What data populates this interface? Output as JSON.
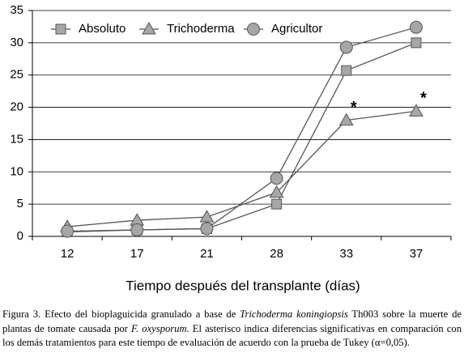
{
  "chart_data": {
    "type": "line",
    "x_label": "Tiempo después del transplante (días)",
    "categories": [
      "12",
      "17",
      "21",
      "28",
      "33",
      "37"
    ],
    "series": [
      {
        "name": "Absoluto",
        "marker": "square",
        "color": "#a6a6a6",
        "values": [
          0.7,
          1.0,
          1.2,
          5.0,
          25.7,
          30.0
        ]
      },
      {
        "name": "Trichoderma",
        "marker": "triangle",
        "color": "#a6a6a6",
        "values": [
          1.5,
          2.5,
          3.0,
          6.8,
          18.0,
          19.4
        ]
      },
      {
        "name": "Agricultor",
        "marker": "circle",
        "color": "#a6a6a6",
        "values": [
          0.8,
          1.0,
          1.2,
          9.0,
          29.3,
          32.4
        ]
      }
    ],
    "annotations": [
      "*",
      "*"
    ],
    "ylim": [
      0,
      35
    ],
    "yticks": [
      0,
      5,
      10,
      15,
      20,
      25,
      30,
      35
    ],
    "grid": true,
    "legend": "top"
  },
  "caption": [
    "Figura 3. Efecto del bioplaguicida granulado a base de ",
    "Trichoderma koningiopsis",
    " Th003 sobre la muerte de plantas de tomate causada por ",
    "F. oxysporum",
    ". El asterisco indica diferencias significativas en comparación con los demás tratamientos para este tiempo de evaluación de acuerdo con la prueba de Tukey (α=0,05)."
  ]
}
